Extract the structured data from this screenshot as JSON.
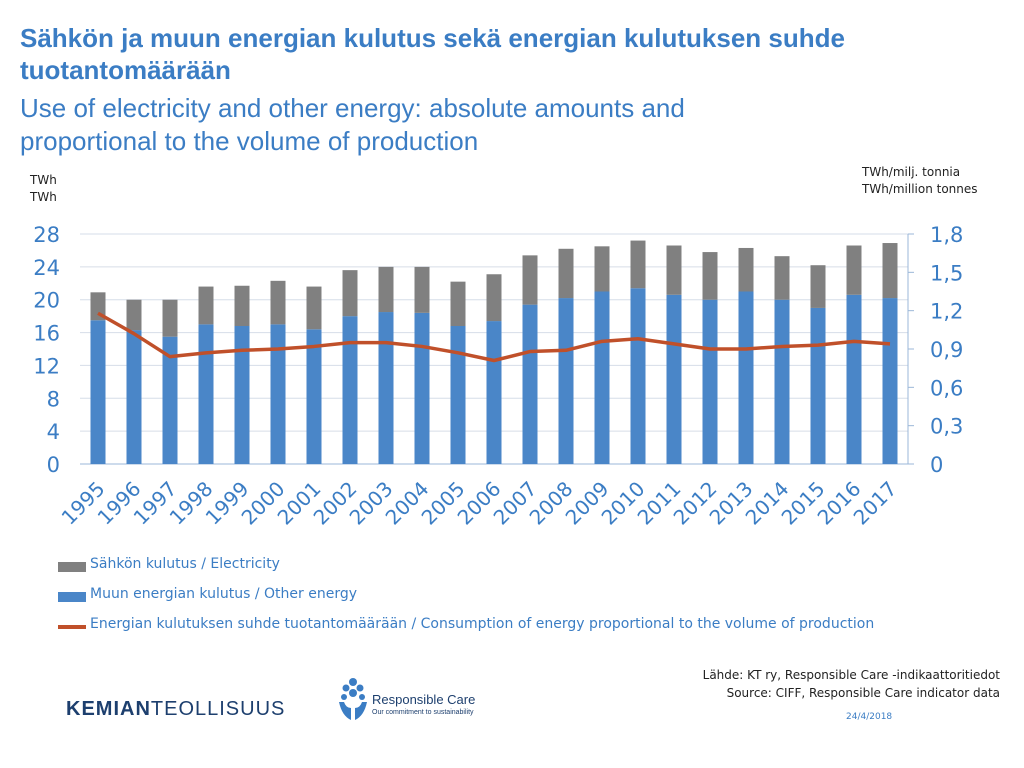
{
  "title_fi": "Sähkön ja muun energian kulutus sekä energian kulutuksen suhde tuotantomäärään",
  "title_en": "Use of electricity and other energy: absolute amounts and proportional to the volume of production",
  "left_unit_fi": "TWh",
  "left_unit_en": "TWh",
  "right_unit_fi": "TWh/milj. tonnia",
  "right_unit_en": "TWh/million tonnes",
  "colors": {
    "electricity": "#808080",
    "other_energy": "#4a86c8",
    "ratio_line": "#c0502a",
    "title": "#3b7dc4"
  },
  "chart_data": {
    "type": "bar",
    "stacked": true,
    "categories": [
      "1995",
      "1996",
      "1997",
      "1998",
      "1999",
      "2000",
      "2001",
      "2002",
      "2003",
      "2004",
      "2005",
      "2006",
      "2007",
      "2008",
      "2009",
      "2010",
      "2011",
      "2012",
      "2013",
      "2014",
      "2015",
      "2016",
      "2017"
    ],
    "y_left": {
      "ylim": [
        0,
        28
      ],
      "ticks": [
        "0",
        "4",
        "8",
        "12",
        "16",
        "20",
        "24",
        "28"
      ]
    },
    "y_right": {
      "ylim": [
        0,
        1.8
      ],
      "ticks": [
        "0",
        "0,3",
        "0,6",
        "0,9",
        "1,2",
        "1,5",
        "1,8"
      ]
    },
    "grid": "horizontal",
    "legend_position": "bottom",
    "series": [
      {
        "name": "Muun energian kulutus / Other energy",
        "type": "bar",
        "axis": "left",
        "values": [
          17.5,
          16.3,
          15.5,
          17.0,
          16.8,
          17.0,
          16.4,
          18.0,
          18.5,
          18.4,
          16.8,
          17.4,
          19.4,
          20.2,
          21.0,
          21.4,
          20.6,
          20.0,
          21.0,
          20.0,
          19.0,
          20.6,
          20.2
        ]
      },
      {
        "name": "Sähkön kulutus / Electricity",
        "type": "bar",
        "axis": "left",
        "values": [
          3.4,
          3.7,
          4.5,
          4.6,
          4.9,
          5.3,
          5.2,
          5.6,
          5.5,
          5.6,
          5.4,
          5.7,
          6.0,
          6.0,
          5.5,
          5.8,
          6.0,
          5.8,
          5.3,
          5.3,
          5.2,
          6.0,
          6.7
        ]
      },
      {
        "name": "Energian kulutuksen suhde tuotantomäärään / Consumption of energy proportional to the volume of production",
        "type": "line",
        "axis": "right",
        "values": [
          1.18,
          1.02,
          0.84,
          0.87,
          0.89,
          0.9,
          0.92,
          0.95,
          0.95,
          0.92,
          0.87,
          0.81,
          0.88,
          0.89,
          0.96,
          0.98,
          0.94,
          0.9,
          0.9,
          0.92,
          0.93,
          0.96,
          0.94
        ]
      }
    ]
  },
  "legend": {
    "electricity": "Sähkön kulutus / Electricity",
    "other_energy": "Muun energian kulutus / Other energy",
    "ratio": "Energian kulutuksen suhde tuotantomäärään / Consumption of energy proportional to the volume of production"
  },
  "source_fi": "Lähde: KT ry, Responsible Care -indikaattoritiedot",
  "source_en": "Source: CIFF, Responsible Care indicator data",
  "date": "24/4/2018",
  "logo_kt_bold": "KEMIAN",
  "logo_kt_normal": "TEOLLISUUS",
  "logo_rc_title": "Responsible Care",
  "logo_rc_sub": "Our commitment to sustainability"
}
